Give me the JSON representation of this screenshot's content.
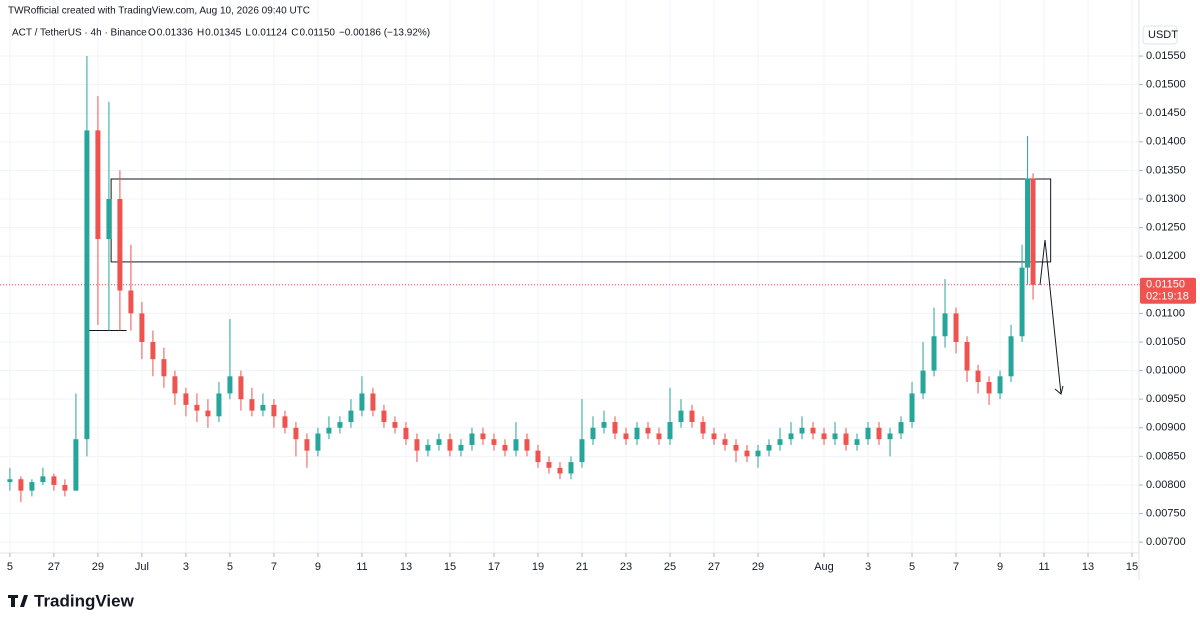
{
  "header": {
    "credit": "TWRofficial created with TradingView.com, Aug 10, 2026 09:40 UTC",
    "symbol": "ACT / TetherUS · 4h · Binance",
    "ohlc": [
      {
        "key": "O",
        "value": "0.01336"
      },
      {
        "key": "H",
        "value": "0.01345"
      },
      {
        "key": "L",
        "value": "0.01124"
      },
      {
        "key": "C",
        "value": "0.01150"
      }
    ],
    "change": "−0.00186 (−13.92%)"
  },
  "footer": {
    "logo": "TradingView"
  },
  "chart_data": {
    "type": "candlestick",
    "currency": "USDT",
    "up_color": "#26a69a",
    "down_color": "#ef5350",
    "grid": true,
    "last_price": {
      "value": 0.0115,
      "label": "0.01150"
    },
    "countdown": "02:19:18",
    "x": [
      0,
      0.5,
      1,
      1.5,
      2,
      2.5,
      3,
      3.5,
      4,
      4.5,
      5,
      5.5,
      6,
      6.5,
      7,
      7.5,
      8,
      8.5,
      9,
      9.5,
      10,
      10.5,
      11,
      11.5,
      12,
      12.5,
      13,
      13.5,
      14,
      14.5,
      15,
      15.5,
      16,
      16.5,
      17,
      17.5,
      18,
      18.5,
      19,
      19.5,
      20,
      20.5,
      21,
      21.5,
      22,
      22.5,
      23,
      23.5,
      24,
      24.5,
      25,
      25.5,
      26,
      26.5,
      27,
      27.5,
      28,
      28.5,
      29,
      29.5,
      30,
      30.5,
      31,
      31.5,
      32,
      32.5,
      33,
      33.5,
      34,
      34.5,
      35,
      35.5,
      36,
      36.5,
      37,
      37.5,
      38,
      38.5,
      39,
      39.5,
      40,
      40.5,
      41,
      41.5,
      42,
      42.5,
      43,
      43.5,
      44,
      44.5,
      45,
      45.5,
      46,
      46.25,
      46.5
    ],
    "open": [
      0.00805,
      0.0081,
      0.0079,
      0.00805,
      0.00815,
      0.008,
      0.0079,
      0.0088,
      0.0142,
      0.0123,
      0.013,
      0.0114,
      0.011,
      0.0105,
      0.0102,
      0.0099,
      0.0096,
      0.0094,
      0.0093,
      0.0092,
      0.0096,
      0.0099,
      0.0095,
      0.0093,
      0.0094,
      0.0092,
      0.009,
      0.0088,
      0.0086,
      0.0089,
      0.009,
      0.0091,
      0.0093,
      0.0096,
      0.0093,
      0.0091,
      0.009,
      0.0088,
      0.0086,
      0.0087,
      0.0088,
      0.0086,
      0.0087,
      0.0089,
      0.0088,
      0.0087,
      0.0086,
      0.0088,
      0.0086,
      0.0084,
      0.0083,
      0.0082,
      0.0084,
      0.0088,
      0.009,
      0.0091,
      0.0089,
      0.0088,
      0.009,
      0.0089,
      0.0088,
      0.0091,
      0.0093,
      0.0091,
      0.0089,
      0.0088,
      0.0087,
      0.0086,
      0.0085,
      0.0086,
      0.0087,
      0.0088,
      0.0089,
      0.009,
      0.0089,
      0.0088,
      0.0089,
      0.0087,
      0.0088,
      0.009,
      0.0088,
      0.0089,
      0.0091,
      0.0096,
      0.01,
      0.0106,
      0.011,
      0.0105,
      0.01,
      0.0098,
      0.0096,
      0.0099,
      0.0106,
      0.0118,
      0.01336
    ],
    "high": [
      0.0083,
      0.00815,
      0.0081,
      0.0083,
      0.0082,
      0.0081,
      0.0096,
      0.0155,
      0.0148,
      0.0147,
      0.0135,
      0.0122,
      0.0112,
      0.0107,
      0.0104,
      0.01,
      0.0097,
      0.0096,
      0.0095,
      0.0098,
      0.0109,
      0.01,
      0.0097,
      0.0096,
      0.0095,
      0.0093,
      0.0091,
      0.0089,
      0.009,
      0.0092,
      0.0092,
      0.0095,
      0.0099,
      0.0097,
      0.0094,
      0.0092,
      0.0091,
      0.0089,
      0.0088,
      0.0089,
      0.0089,
      0.0088,
      0.009,
      0.009,
      0.0089,
      0.0088,
      0.0091,
      0.0089,
      0.0087,
      0.0085,
      0.0084,
      0.0085,
      0.0095,
      0.0092,
      0.0093,
      0.0092,
      0.009,
      0.0091,
      0.0091,
      0.009,
      0.0097,
      0.0095,
      0.0094,
      0.0092,
      0.009,
      0.0089,
      0.0088,
      0.0087,
      0.0087,
      0.0088,
      0.009,
      0.0091,
      0.0092,
      0.0091,
      0.009,
      0.0091,
      0.009,
      0.0089,
      0.0091,
      0.0091,
      0.009,
      0.0092,
      0.0098,
      0.0105,
      0.0111,
      0.0116,
      0.0111,
      0.0106,
      0.0101,
      0.0099,
      0.01,
      0.0108,
      0.0122,
      0.0141,
      0.01345
    ],
    "low": [
      0.0079,
      0.0077,
      0.0078,
      0.008,
      0.0079,
      0.0078,
      0.0079,
      0.0085,
      0.0108,
      0.0107,
      0.0107,
      0.0107,
      0.0102,
      0.0099,
      0.0097,
      0.0094,
      0.0092,
      0.0091,
      0.009,
      0.0091,
      0.0095,
      0.0093,
      0.0092,
      0.0092,
      0.009,
      0.0089,
      0.0085,
      0.0083,
      0.0085,
      0.0088,
      0.0089,
      0.009,
      0.0092,
      0.0092,
      0.009,
      0.0089,
      0.0087,
      0.0084,
      0.0085,
      0.0086,
      0.0085,
      0.0085,
      0.0086,
      0.0087,
      0.0086,
      0.0085,
      0.0085,
      0.0085,
      0.0083,
      0.0082,
      0.0081,
      0.0081,
      0.0083,
      0.0087,
      0.0089,
      0.0088,
      0.0087,
      0.0087,
      0.0088,
      0.0087,
      0.0087,
      0.009,
      0.009,
      0.0088,
      0.0087,
      0.0086,
      0.0084,
      0.0084,
      0.0083,
      0.0085,
      0.0086,
      0.0087,
      0.0088,
      0.0088,
      0.0087,
      0.0087,
      0.0086,
      0.0086,
      0.0087,
      0.0087,
      0.0085,
      0.0088,
      0.009,
      0.0095,
      0.0099,
      0.0104,
      0.0103,
      0.0098,
      0.0096,
      0.0094,
      0.0095,
      0.0098,
      0.0105,
      0.0115,
      0.01124
    ],
    "close": [
      0.0081,
      0.0079,
      0.00805,
      0.00815,
      0.008,
      0.0079,
      0.0088,
      0.0142,
      0.0123,
      0.013,
      0.0114,
      0.011,
      0.0105,
      0.0102,
      0.0099,
      0.0096,
      0.0094,
      0.0093,
      0.0092,
      0.0096,
      0.0099,
      0.0095,
      0.0093,
      0.0094,
      0.0092,
      0.009,
      0.0088,
      0.0086,
      0.0089,
      0.009,
      0.0091,
      0.0093,
      0.0096,
      0.0093,
      0.0091,
      0.009,
      0.0088,
      0.0086,
      0.0087,
      0.0088,
      0.0086,
      0.0087,
      0.0089,
      0.0088,
      0.0087,
      0.0086,
      0.0088,
      0.0086,
      0.0084,
      0.0083,
      0.0082,
      0.0084,
      0.0088,
      0.009,
      0.0091,
      0.0089,
      0.0088,
      0.009,
      0.0089,
      0.0088,
      0.0091,
      0.0093,
      0.0091,
      0.0089,
      0.0088,
      0.0087,
      0.0086,
      0.0085,
      0.0086,
      0.0087,
      0.0088,
      0.0089,
      0.009,
      0.0089,
      0.0088,
      0.0089,
      0.0087,
      0.0088,
      0.009,
      0.0088,
      0.0089,
      0.0091,
      0.0096,
      0.01,
      0.0106,
      0.011,
      0.0105,
      0.01,
      0.0098,
      0.0096,
      0.0099,
      0.0106,
      0.0118,
      0.01336,
      0.0115
    ],
    "xlim": [
      -0.45,
      51.27
    ],
    "xticks": [
      {
        "value": 0,
        "label": "5"
      },
      {
        "value": 2,
        "label": "27"
      },
      {
        "value": 4,
        "label": "29"
      },
      {
        "value": 6,
        "label": "Jul"
      },
      {
        "value": 8,
        "label": "3"
      },
      {
        "value": 10,
        "label": "5"
      },
      {
        "value": 12,
        "label": "7"
      },
      {
        "value": 14,
        "label": "9"
      },
      {
        "value": 16,
        "label": "11"
      },
      {
        "value": 18,
        "label": "13"
      },
      {
        "value": 20,
        "label": "15"
      },
      {
        "value": 22,
        "label": "17"
      },
      {
        "value": 24,
        "label": "19"
      },
      {
        "value": 26,
        "label": "21"
      },
      {
        "value": 28,
        "label": "23"
      },
      {
        "value": 30,
        "label": "25"
      },
      {
        "value": 32,
        "label": "27"
      },
      {
        "value": 34,
        "label": "29"
      },
      {
        "value": 37,
        "label": "Aug"
      },
      {
        "value": 39,
        "label": "3"
      },
      {
        "value": 41,
        "label": "5"
      },
      {
        "value": 43,
        "label": "7"
      },
      {
        "value": 45,
        "label": "9"
      },
      {
        "value": 47,
        "label": "11"
      },
      {
        "value": 49,
        "label": "13"
      },
      {
        "value": 51,
        "label": "15"
      }
    ],
    "ylim": [
      0.00681,
      0.01648
    ],
    "yticks": [
      {
        "value": 0.007,
        "label": "0.00700"
      },
      {
        "value": 0.0075,
        "label": "0.00750"
      },
      {
        "value": 0.008,
        "label": "0.00800"
      },
      {
        "value": 0.0085,
        "label": "0.00850"
      },
      {
        "value": 0.009,
        "label": "0.00900"
      },
      {
        "value": 0.0095,
        "label": "0.00950"
      },
      {
        "value": 0.01,
        "label": "0.01000"
      },
      {
        "value": 0.0105,
        "label": "0.01050"
      },
      {
        "value": 0.011,
        "label": "0.01100"
      },
      {
        "value": 0.0115,
        "label": "0.01150"
      },
      {
        "value": 0.012,
        "label": "0.01200"
      },
      {
        "value": 0.0125,
        "label": "0.01250"
      },
      {
        "value": 0.013,
        "label": "0.01300"
      },
      {
        "value": 0.0135,
        "label": "0.01350"
      },
      {
        "value": 0.014,
        "label": "0.01400"
      },
      {
        "value": 0.0145,
        "label": "0.01450"
      },
      {
        "value": 0.015,
        "label": "0.01500"
      },
      {
        "value": 0.0155,
        "label": "0.01550"
      }
    ],
    "zone": {
      "x": [
        4.6,
        47.3
      ],
      "y": [
        0.0119,
        0.01335
      ]
    },
    "level": {
      "x": [
        3.4,
        5.3
      ],
      "y": 0.0107
    }
  }
}
